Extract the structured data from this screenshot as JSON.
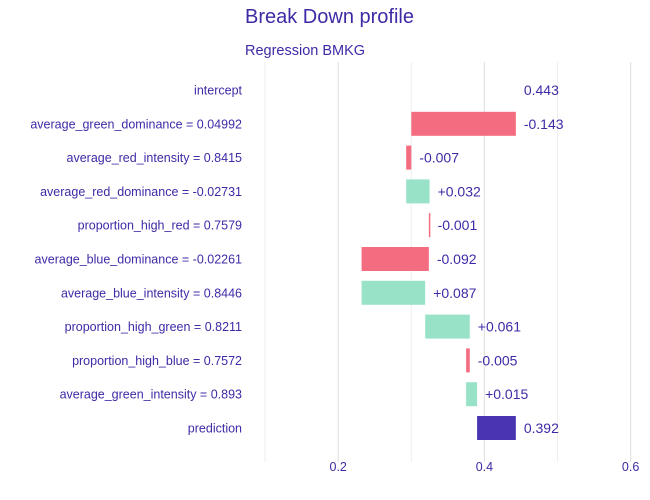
{
  "colors": {
    "negative": "#f46c80",
    "positive": "#98e2c8",
    "prediction": "#4a34b0",
    "text": "#3f2aa6",
    "grid": "#e3e3e3"
  },
  "chart_data": {
    "type": "bar",
    "subtype": "break-down waterfall",
    "title": "Break Down profile",
    "subtitle": "Regression BMKG",
    "xlabel": "",
    "ylabel": "",
    "xlim": [
      0.1,
      0.62
    ],
    "x_ticks": [
      0.2,
      0.4,
      0.6
    ],
    "x_tick_labels": [
      "0.2",
      "0.4",
      "0.6"
    ],
    "grid": true,
    "legend": "none",
    "bars": [
      {
        "variable": "intercept",
        "start": 0.443,
        "end": 0.443,
        "contribution": 0.443,
        "label": "0.443",
        "sign": "intercept"
      },
      {
        "variable": "average_green_dominance = 0.04992",
        "start": 0.443,
        "end": 0.3,
        "contribution": -0.143,
        "label": "-0.143",
        "sign": "negative"
      },
      {
        "variable": "average_red_intensity = 0.8415",
        "start": 0.3,
        "end": 0.293,
        "contribution": -0.007,
        "label": "-0.007",
        "sign": "negative"
      },
      {
        "variable": "average_red_dominance = -0.02731",
        "start": 0.293,
        "end": 0.325,
        "contribution": 0.032,
        "label": "+0.032",
        "sign": "positive"
      },
      {
        "variable": "proportion_high_red = 0.7579",
        "start": 0.325,
        "end": 0.324,
        "contribution": -0.001,
        "label": "-0.001",
        "sign": "negative"
      },
      {
        "variable": "average_blue_dominance = -0.02261",
        "start": 0.324,
        "end": 0.232,
        "contribution": -0.092,
        "label": "-0.092",
        "sign": "negative"
      },
      {
        "variable": "average_blue_intensity = 0.8446",
        "start": 0.232,
        "end": 0.319,
        "contribution": 0.087,
        "label": "+0.087",
        "sign": "positive"
      },
      {
        "variable": "proportion_high_green = 0.8211",
        "start": 0.319,
        "end": 0.38,
        "contribution": 0.061,
        "label": "+0.061",
        "sign": "positive"
      },
      {
        "variable": "proportion_high_blue = 0.7572",
        "start": 0.38,
        "end": 0.375,
        "contribution": -0.005,
        "label": "-0.005",
        "sign": "negative"
      },
      {
        "variable": "average_green_intensity = 0.893",
        "start": 0.375,
        "end": 0.39,
        "contribution": 0.015,
        "label": "+0.015",
        "sign": "positive"
      },
      {
        "variable": "prediction",
        "start": 0.39,
        "end": 0.443,
        "contribution": 0.392,
        "label": "0.392",
        "sign": "prediction"
      }
    ]
  }
}
